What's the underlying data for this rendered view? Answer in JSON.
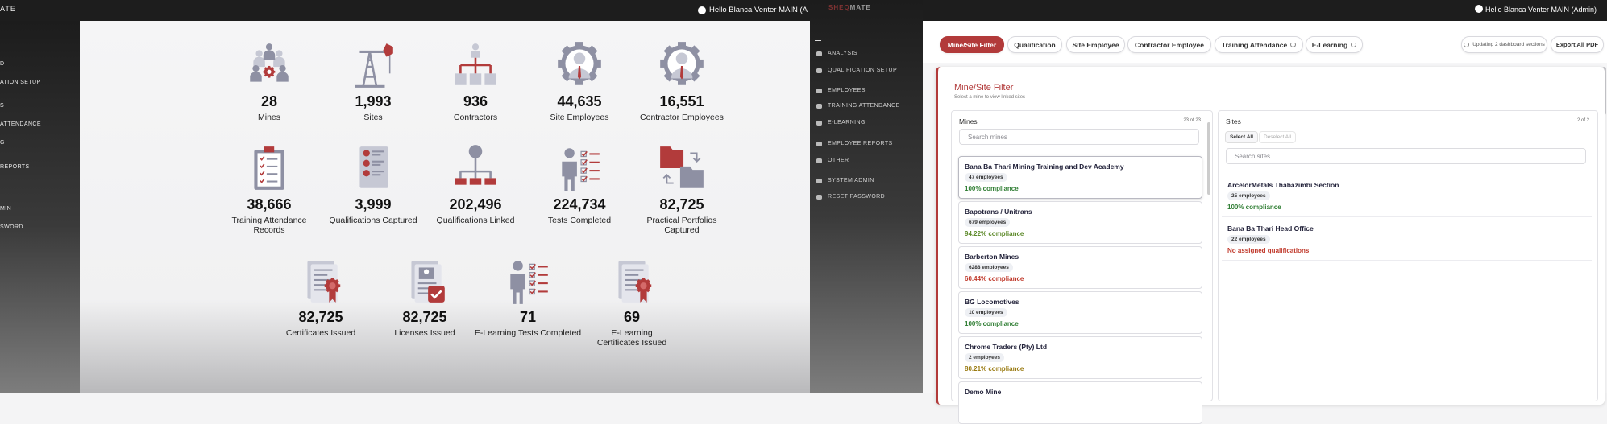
{
  "left_screen": {
    "logo": "ATE",
    "greeting": "Hello Blanca Venter MAIN (A",
    "sidebar": [
      "D",
      "ATION SETUP",
      "S",
      "ATTENDANCE",
      "G",
      "REPORTS",
      "MIN",
      "SWORD"
    ],
    "stats": [
      {
        "value": "28",
        "label": "Mines"
      },
      {
        "value": "1,993",
        "label": "Sites"
      },
      {
        "value": "936",
        "label": "Contractors"
      },
      {
        "value": "44,635",
        "label": "Site Employees"
      },
      {
        "value": "16,551",
        "label": "Contractor Employees"
      },
      {
        "value": "38,666",
        "label": "Training Attendance Records"
      },
      {
        "value": "3,999",
        "label": "Qualifications Captured"
      },
      {
        "value": "202,496",
        "label": "Qualifications Linked"
      },
      {
        "value": "224,734",
        "label": "Tests Completed"
      },
      {
        "value": "82,725",
        "label": "Practical Portfolios Captured"
      },
      {
        "value": "82,725",
        "label": "Certificates Issued"
      },
      {
        "value": "82,725",
        "label": "Licenses Issued"
      },
      {
        "value": "71",
        "label": "E-Learning Tests Completed"
      },
      {
        "value": "69",
        "label": "E-Learning Certificates Issued"
      }
    ]
  },
  "right_screen": {
    "logo_accent": "SHEQ",
    "logo_rest": "MATE",
    "greeting": "Hello Blanca Venter MAIN (Admin)",
    "sidebar": [
      "ANALYSIS",
      "QUALIFICATION SETUP",
      "EMPLOYEES",
      "TRAINING ATTENDANCE",
      "E-LEARNING",
      "EMPLOYEE REPORTS",
      "OTHER",
      "SYSTEM ADMIN",
      "RESET PASSWORD"
    ],
    "tabs": [
      "Mine/Site Filter",
      "Qualification",
      "Site Employee",
      "Contractor Employee",
      "Training Attendance",
      "E-Learning"
    ],
    "status": "Updating 2 dashboard sections",
    "export": "Export All PDF",
    "filter": {
      "title": "Mine/Site Filter",
      "subtitle": "Select a mine to view linked sites",
      "mines": {
        "title": "Mines",
        "count": "23 of 23",
        "search": "Search mines",
        "items": [
          {
            "name": "Bana Ba Thari Mining Training and Dev Academy",
            "employees": "47 employees",
            "compliance": "100% compliance",
            "color": "#2e7d32"
          },
          {
            "name": "Bapotrans / Unitrans",
            "employees": "679 employees",
            "compliance": "94.22% compliance",
            "color": "#5d8a2a"
          },
          {
            "name": "Barberton Mines",
            "employees": "6288 employees",
            "compliance": "60.44% compliance",
            "color": "#c0392b"
          },
          {
            "name": "BG Locomotives",
            "employees": "10 employees",
            "compliance": "100% compliance",
            "color": "#2e7d32"
          },
          {
            "name": "Chrome Traders (Pty) Ltd",
            "employees": "2 employees",
            "compliance": "80.21% compliance",
            "color": "#9a7b12"
          },
          {
            "name": "Demo Mine"
          }
        ]
      },
      "sites": {
        "title": "Sites",
        "count": "2 of 2",
        "select_all": "Select All",
        "deselect_all": "Deselect All",
        "search": "Search sites",
        "items": [
          {
            "name": "ArcelorMetals Thabazimbi Section",
            "employees": "25 employees",
            "compliance": "100% compliance",
            "color": "#2e7d32"
          },
          {
            "name": "Bana Ba Thari Head Office",
            "employees": "22 employees",
            "compliance": "No assigned qualifications",
            "color": "#c0392b"
          }
        ]
      }
    }
  }
}
